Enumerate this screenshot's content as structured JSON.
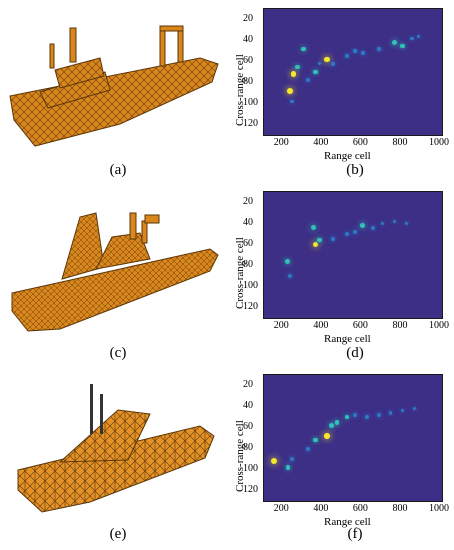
{
  "figure": {
    "panels": [
      {
        "id": "a",
        "caption": "(a)",
        "ship": "fishing-vessel-icon"
      },
      {
        "id": "b",
        "caption": "(b)"
      },
      {
        "id": "c",
        "caption": "(c)",
        "ship": "destroyer-icon"
      },
      {
        "id": "d",
        "caption": "(d)"
      },
      {
        "id": "e",
        "caption": "(e)",
        "ship": "corvette-icon"
      },
      {
        "id": "f",
        "caption": "(f)"
      }
    ],
    "colors": {
      "hull": "#d9861c",
      "hull_edge": "#5a3508",
      "background": "#3d2e86",
      "scatter_hot": "#f7e92a",
      "scatter_mid": "#2ec3b5",
      "scatter_low": "#2e79c4"
    }
  },
  "chart_data": [
    {
      "type": "heatmap",
      "panel": "b",
      "xlabel": "Range cell",
      "ylabel": "Cross-range cell",
      "xticks": [
        200,
        400,
        600,
        800,
        1000
      ],
      "yticks": [
        20,
        40,
        60,
        80,
        100,
        120
      ],
      "xlim": [
        100,
        1000
      ],
      "ylim": [
        10,
        130
      ],
      "scatterers": [
        {
          "x": 230,
          "y": 88,
          "v": 0.95
        },
        {
          "x": 250,
          "y": 72,
          "v": 0.85
        },
        {
          "x": 270,
          "y": 65,
          "v": 0.6
        },
        {
          "x": 300,
          "y": 48,
          "v": 0.7
        },
        {
          "x": 320,
          "y": 78,
          "v": 0.5
        },
        {
          "x": 360,
          "y": 70,
          "v": 0.55
        },
        {
          "x": 420,
          "y": 58,
          "v": 0.9
        },
        {
          "x": 450,
          "y": 62,
          "v": 0.5
        },
        {
          "x": 520,
          "y": 55,
          "v": 0.4
        },
        {
          "x": 600,
          "y": 52,
          "v": 0.35
        },
        {
          "x": 680,
          "y": 48,
          "v": 0.4
        },
        {
          "x": 760,
          "y": 42,
          "v": 0.75
        },
        {
          "x": 800,
          "y": 45,
          "v": 0.55
        },
        {
          "x": 850,
          "y": 38,
          "v": 0.45
        },
        {
          "x": 880,
          "y": 36,
          "v": 0.3
        },
        {
          "x": 240,
          "y": 98,
          "v": 0.45
        },
        {
          "x": 380,
          "y": 62,
          "v": 0.4
        },
        {
          "x": 560,
          "y": 50,
          "v": 0.3
        }
      ]
    },
    {
      "type": "heatmap",
      "panel": "d",
      "xlabel": "Range cell",
      "ylabel": "Cross-range cell",
      "xticks": [
        200,
        400,
        600,
        800,
        1000
      ],
      "yticks": [
        20,
        40,
        60,
        80,
        100,
        120
      ],
      "xlim": [
        100,
        1000
      ],
      "ylim": [
        10,
        130
      ],
      "scatterers": [
        {
          "x": 220,
          "y": 76,
          "v": 0.7
        },
        {
          "x": 230,
          "y": 90,
          "v": 0.5
        },
        {
          "x": 350,
          "y": 44,
          "v": 0.8
        },
        {
          "x": 360,
          "y": 60,
          "v": 0.95
        },
        {
          "x": 380,
          "y": 56,
          "v": 0.6
        },
        {
          "x": 450,
          "y": 55,
          "v": 0.45
        },
        {
          "x": 520,
          "y": 50,
          "v": 0.5
        },
        {
          "x": 560,
          "y": 48,
          "v": 0.45
        },
        {
          "x": 600,
          "y": 42,
          "v": 0.7
        },
        {
          "x": 650,
          "y": 44,
          "v": 0.5
        },
        {
          "x": 700,
          "y": 40,
          "v": 0.4
        },
        {
          "x": 760,
          "y": 38,
          "v": 0.3
        },
        {
          "x": 820,
          "y": 40,
          "v": 0.25
        }
      ]
    },
    {
      "type": "heatmap",
      "panel": "f",
      "xlabel": "Range cell",
      "ylabel": "Cross-range cell",
      "xticks": [
        200,
        400,
        600,
        800,
        1000
      ],
      "yticks": [
        20,
        40,
        60,
        80,
        100,
        120
      ],
      "xlim": [
        100,
        1000
      ],
      "ylim": [
        10,
        130
      ],
      "scatterers": [
        {
          "x": 150,
          "y": 92,
          "v": 1.0
        },
        {
          "x": 220,
          "y": 98,
          "v": 0.6
        },
        {
          "x": 240,
          "y": 90,
          "v": 0.5
        },
        {
          "x": 320,
          "y": 80,
          "v": 0.5
        },
        {
          "x": 360,
          "y": 72,
          "v": 0.55
        },
        {
          "x": 420,
          "y": 68,
          "v": 0.9
        },
        {
          "x": 440,
          "y": 58,
          "v": 0.75
        },
        {
          "x": 470,
          "y": 55,
          "v": 0.65
        },
        {
          "x": 520,
          "y": 50,
          "v": 0.55
        },
        {
          "x": 560,
          "y": 48,
          "v": 0.5
        },
        {
          "x": 620,
          "y": 50,
          "v": 0.45
        },
        {
          "x": 680,
          "y": 48,
          "v": 0.5
        },
        {
          "x": 740,
          "y": 46,
          "v": 0.4
        },
        {
          "x": 800,
          "y": 44,
          "v": 0.3
        },
        {
          "x": 860,
          "y": 42,
          "v": 0.25
        }
      ]
    }
  ]
}
